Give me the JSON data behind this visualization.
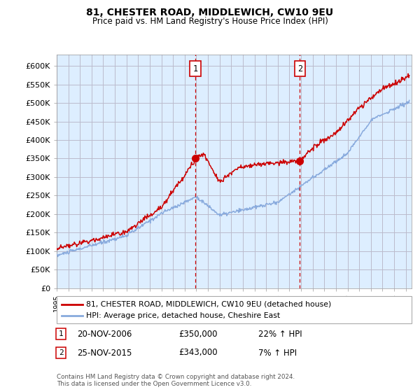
{
  "title1": "81, CHESTER ROAD, MIDDLEWICH, CW10 9EU",
  "title2": "Price paid vs. HM Land Registry's House Price Index (HPI)",
  "ylabel_ticks": [
    "£0",
    "£50K",
    "£100K",
    "£150K",
    "£200K",
    "£250K",
    "£300K",
    "£350K",
    "£400K",
    "£450K",
    "£500K",
    "£550K",
    "£600K"
  ],
  "ylim": [
    0,
    630000
  ],
  "xlim_start": 1995.0,
  "xlim_end": 2025.5,
  "background_color": "#ffffff",
  "plot_bg_color": "#ddeeff",
  "grid_color": "#bbbbcc",
  "red_color": "#cc0000",
  "blue_color": "#88aadd",
  "marker1_x": 2006.9,
  "marker1_y": 350000,
  "marker2_x": 2015.9,
  "marker2_y": 343000,
  "dashed_x1": 2006.9,
  "dashed_x2": 2015.9,
  "legend_label1": "81, CHESTER ROAD, MIDDLEWICH, CW10 9EU (detached house)",
  "legend_label2": "HPI: Average price, detached house, Cheshire East",
  "annotation1_num": "1",
  "annotation1_date": "20-NOV-2006",
  "annotation1_price": "£350,000",
  "annotation1_hpi": "22% ↑ HPI",
  "annotation2_num": "2",
  "annotation2_date": "25-NOV-2015",
  "annotation2_price": "£343,000",
  "annotation2_hpi": "7% ↑ HPI",
  "footer": "Contains HM Land Registry data © Crown copyright and database right 2024.\nThis data is licensed under the Open Government Licence v3.0."
}
